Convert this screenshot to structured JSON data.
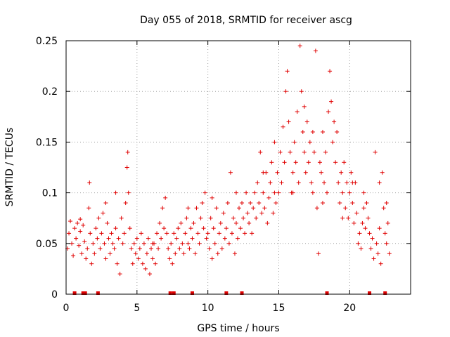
{
  "chart_data": {
    "type": "scatter",
    "title": "Day 055 of 2018, SRMTID for receiver ascg",
    "xlabel": "GPS time / hours",
    "ylabel": "SRMTID / TECUs",
    "xlim": [
      0,
      24.3
    ],
    "ylim": [
      0,
      0.25
    ],
    "grid": true,
    "marker": "+",
    "color": "#e00000",
    "xticks": [
      0,
      5,
      10,
      15,
      20
    ],
    "xtick_labels": [
      "0",
      "5",
      "10",
      "15",
      "20"
    ],
    "yticks": [
      0,
      0.05,
      0.1,
      0.15,
      0.2,
      0.25
    ],
    "ytick_labels": [
      "0",
      "0.05",
      "0.1",
      "0.15",
      "0.2",
      "0.25"
    ],
    "zero_markers_x": [
      0.6,
      1.2,
      1.35,
      2.25,
      7.35,
      7.6,
      8.9,
      11.3,
      12.4,
      18.4,
      21.4,
      22.5
    ],
    "series": [
      {
        "name": "SRMTID",
        "description": "dense cloud of points; representative (x hours, y TECU) samples",
        "points": [
          [
            0.1,
            0.045
          ],
          [
            0.2,
            0.06
          ],
          [
            0.3,
            0.072
          ],
          [
            0.4,
            0.05
          ],
          [
            0.5,
            0.038
          ],
          [
            0.6,
            0.065
          ],
          [
            0.7,
            0.055
          ],
          [
            0.8,
            0.07
          ],
          [
            0.9,
            0.048
          ],
          [
            1.0,
            0.062
          ],
          [
            1.1,
            0.04
          ],
          [
            1.2,
            0.068
          ],
          [
            1.3,
            0.052
          ],
          [
            1.4,
            0.035
          ],
          [
            1.5,
            0.045
          ],
          [
            1.6,
            0.085
          ],
          [
            1.65,
            0.11
          ],
          [
            1.7,
            0.06
          ],
          [
            1.8,
            0.03
          ],
          [
            1.9,
            0.05
          ],
          [
            2.0,
            0.04
          ],
          [
            2.1,
            0.065
          ],
          [
            2.2,
            0.055
          ],
          [
            2.3,
            0.075
          ],
          [
            2.4,
            0.045
          ],
          [
            2.5,
            0.06
          ],
          [
            2.6,
            0.08
          ],
          [
            2.7,
            0.05
          ],
          [
            2.8,
            0.035
          ],
          [
            2.9,
            0.07
          ],
          [
            3.0,
            0.055
          ],
          [
            3.1,
            0.04
          ],
          [
            3.2,
            0.06
          ],
          [
            3.3,
            0.05
          ],
          [
            3.4,
            0.045
          ],
          [
            3.5,
            0.065
          ],
          [
            3.6,
            0.03
          ],
          [
            3.7,
            0.055
          ],
          [
            3.8,
            0.02
          ],
          [
            3.9,
            0.075
          ],
          [
            4.0,
            0.05
          ],
          [
            4.1,
            0.06
          ],
          [
            4.2,
            0.09
          ],
          [
            4.3,
            0.125
          ],
          [
            4.35,
            0.14
          ],
          [
            4.4,
            0.1
          ],
          [
            4.5,
            0.065
          ],
          [
            4.6,
            0.045
          ],
          [
            4.7,
            0.03
          ],
          [
            4.8,
            0.05
          ],
          [
            4.9,
            0.04
          ],
          [
            5.0,
            0.055
          ],
          [
            5.1,
            0.035
          ],
          [
            5.2,
            0.045
          ],
          [
            5.3,
            0.06
          ],
          [
            5.4,
            0.03
          ],
          [
            5.5,
            0.05
          ],
          [
            5.6,
            0.025
          ],
          [
            5.7,
            0.04
          ],
          [
            5.8,
            0.055
          ],
          [
            5.9,
            0.02
          ],
          [
            6.0,
            0.045
          ],
          [
            6.1,
            0.035
          ],
          [
            6.2,
            0.05
          ],
          [
            6.3,
            0.03
          ],
          [
            6.4,
            0.06
          ],
          [
            6.5,
            0.045
          ],
          [
            6.6,
            0.07
          ],
          [
            6.7,
            0.055
          ],
          [
            6.8,
            0.085
          ],
          [
            6.9,
            0.065
          ],
          [
            7.0,
            0.095
          ],
          [
            7.1,
            0.06
          ],
          [
            7.2,
            0.045
          ],
          [
            7.3,
            0.035
          ],
          [
            7.4,
            0.05
          ],
          [
            7.5,
            0.03
          ],
          [
            7.6,
            0.06
          ],
          [
            7.7,
            0.04
          ],
          [
            7.8,
            0.055
          ],
          [
            7.9,
            0.065
          ],
          [
            8.0,
            0.045
          ],
          [
            8.1,
            0.07
          ],
          [
            8.2,
            0.05
          ],
          [
            8.3,
            0.04
          ],
          [
            8.4,
            0.06
          ],
          [
            8.5,
            0.075
          ],
          [
            8.6,
            0.05
          ],
          [
            8.7,
            0.045
          ],
          [
            8.8,
            0.065
          ],
          [
            8.9,
            0.055
          ],
          [
            9.0,
            0.07
          ],
          [
            9.1,
            0.04
          ],
          [
            9.2,
            0.085
          ],
          [
            9.3,
            0.06
          ],
          [
            9.4,
            0.05
          ],
          [
            9.5,
            0.075
          ],
          [
            9.6,
            0.09
          ],
          [
            9.7,
            0.065
          ],
          [
            9.8,
            0.1
          ],
          [
            9.9,
            0.055
          ],
          [
            10.0,
            0.06
          ],
          [
            10.1,
            0.045
          ],
          [
            10.2,
            0.075
          ],
          [
            10.3,
            0.035
          ],
          [
            10.4,
            0.065
          ],
          [
            10.5,
            0.05
          ],
          [
            10.6,
            0.085
          ],
          [
            10.7,
            0.04
          ],
          [
            10.8,
            0.06
          ],
          [
            10.9,
            0.07
          ],
          [
            11.0,
            0.045
          ],
          [
            11.1,
            0.08
          ],
          [
            11.2,
            0.055
          ],
          [
            11.3,
            0.065
          ],
          [
            11.4,
            0.09
          ],
          [
            11.5,
            0.05
          ],
          [
            11.6,
            0.12
          ],
          [
            11.7,
            0.06
          ],
          [
            11.8,
            0.075
          ],
          [
            11.9,
            0.04
          ],
          [
            12.0,
            0.07
          ],
          [
            12.1,
            0.055
          ],
          [
            12.2,
            0.085
          ],
          [
            12.3,
            0.065
          ],
          [
            12.4,
            0.09
          ],
          [
            12.5,
            0.075
          ],
          [
            12.6,
            0.06
          ],
          [
            12.7,
            0.1
          ],
          [
            12.8,
            0.08
          ],
          [
            12.9,
            0.07
          ],
          [
            13.0,
            0.09
          ],
          [
            13.1,
            0.06
          ],
          [
            13.2,
            0.085
          ],
          [
            13.3,
            0.1
          ],
          [
            13.4,
            0.075
          ],
          [
            13.5,
            0.11
          ],
          [
            13.6,
            0.09
          ],
          [
            13.7,
            0.14
          ],
          [
            13.8,
            0.08
          ],
          [
            13.9,
            0.1
          ],
          [
            14.0,
            0.085
          ],
          [
            14.1,
            0.12
          ],
          [
            14.2,
            0.07
          ],
          [
            14.3,
            0.095
          ],
          [
            14.4,
            0.11
          ],
          [
            14.5,
            0.13
          ],
          [
            14.6,
            0.08
          ],
          [
            14.7,
            0.1
          ],
          [
            14.8,
            0.09
          ],
          [
            14.9,
            0.12
          ],
          [
            15.0,
            0.1
          ],
          [
            15.1,
            0.14
          ],
          [
            15.2,
            0.11
          ],
          [
            15.3,
            0.165
          ],
          [
            15.4,
            0.13
          ],
          [
            15.5,
            0.2
          ],
          [
            15.6,
            0.22
          ],
          [
            15.7,
            0.17
          ],
          [
            15.8,
            0.14
          ],
          [
            15.9,
            0.1
          ],
          [
            16.0,
            0.12
          ],
          [
            16.1,
            0.15
          ],
          [
            16.2,
            0.13
          ],
          [
            16.3,
            0.18
          ],
          [
            16.4,
            0.11
          ],
          [
            16.5,
            0.245
          ],
          [
            16.6,
            0.2
          ],
          [
            16.7,
            0.16
          ],
          [
            16.8,
            0.14
          ],
          [
            16.9,
            0.12
          ],
          [
            17.0,
            0.17
          ],
          [
            17.1,
            0.13
          ],
          [
            17.2,
            0.15
          ],
          [
            17.3,
            0.11
          ],
          [
            17.4,
            0.1
          ],
          [
            17.5,
            0.14
          ],
          [
            17.6,
            0.24
          ],
          [
            17.7,
            0.085
          ],
          [
            17.8,
            0.04
          ],
          [
            17.9,
            0.13
          ],
          [
            18.0,
            0.12
          ],
          [
            18.1,
            0.16
          ],
          [
            18.2,
            0.11
          ],
          [
            18.3,
            0.14
          ],
          [
            18.4,
            0.1
          ],
          [
            18.5,
            0.18
          ],
          [
            18.6,
            0.22
          ],
          [
            18.7,
            0.19
          ],
          [
            18.8,
            0.15
          ],
          [
            18.9,
            0.17
          ],
          [
            19.0,
            0.13
          ],
          [
            19.1,
            0.16
          ],
          [
            19.2,
            0.11
          ],
          [
            19.3,
            0.09
          ],
          [
            19.4,
            0.12
          ],
          [
            19.5,
            0.1
          ],
          [
            19.6,
            0.13
          ],
          [
            19.7,
            0.085
          ],
          [
            19.8,
            0.11
          ],
          [
            19.9,
            0.075
          ],
          [
            20.0,
            0.1
          ],
          [
            20.1,
            0.12
          ],
          [
            20.2,
            0.09
          ],
          [
            20.3,
            0.07
          ],
          [
            20.4,
            0.11
          ],
          [
            20.5,
            0.08
          ],
          [
            20.6,
            0.05
          ],
          [
            20.7,
            0.06
          ],
          [
            20.8,
            0.045
          ],
          [
            20.9,
            0.07
          ],
          [
            21.0,
            0.085
          ],
          [
            21.1,
            0.065
          ],
          [
            21.2,
            0.09
          ],
          [
            21.3,
            0.075
          ],
          [
            21.4,
            0.06
          ],
          [
            21.5,
            0.045
          ],
          [
            21.6,
            0.055
          ],
          [
            21.7,
            0.035
          ],
          [
            21.8,
            0.14
          ],
          [
            21.9,
            0.05
          ],
          [
            22.0,
            0.04
          ],
          [
            22.1,
            0.065
          ],
          [
            22.2,
            0.03
          ],
          [
            22.3,
            0.12
          ],
          [
            22.4,
            0.085
          ],
          [
            22.5,
            0.06
          ],
          [
            22.6,
            0.05
          ],
          [
            22.7,
            0.07
          ],
          [
            22.8,
            0.04
          ],
          [
            1.0,
            0.074
          ],
          [
            2.8,
            0.09
          ],
          [
            3.5,
            0.1
          ],
          [
            6.1,
            0.05
          ],
          [
            8.6,
            0.085
          ],
          [
            10.3,
            0.095
          ],
          [
            12.0,
            0.1
          ],
          [
            13.9,
            0.12
          ],
          [
            14.7,
            0.15
          ],
          [
            16.0,
            0.1
          ],
          [
            16.8,
            0.185
          ],
          [
            17.4,
            0.16
          ],
          [
            18.1,
            0.09
          ],
          [
            19.5,
            0.075
          ],
          [
            20.2,
            0.11
          ],
          [
            21.0,
            0.1
          ],
          [
            22.1,
            0.11
          ],
          [
            22.6,
            0.09
          ]
        ]
      }
    ]
  }
}
